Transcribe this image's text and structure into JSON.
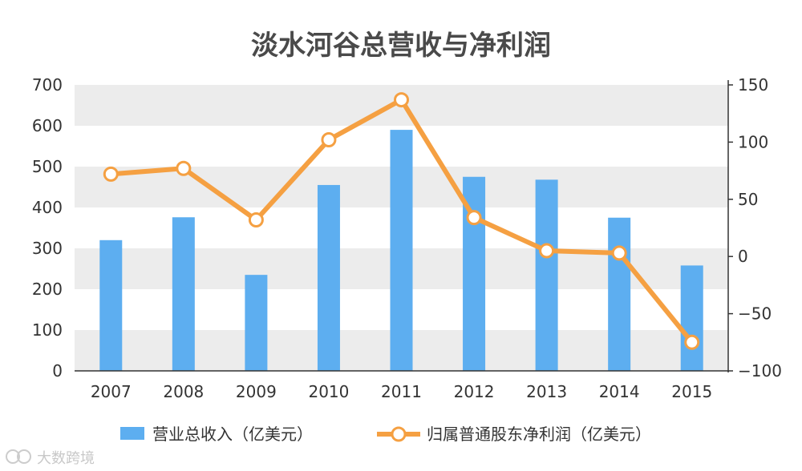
{
  "chart_data": {
    "type": "bar+line",
    "title": "淡水河谷总营收与净利润",
    "categories": [
      "2007",
      "2008",
      "2009",
      "2010",
      "2011",
      "2012",
      "2013",
      "2014",
      "2015"
    ],
    "series": [
      {
        "name": "营业总收入（亿美元）",
        "type": "bar",
        "axis": "left",
        "color": "#5daef0",
        "values": [
          320,
          376,
          235,
          455,
          590,
          475,
          468,
          375,
          258
        ]
      },
      {
        "name": "归属普通股东净利润（亿美元）",
        "type": "line",
        "axis": "right",
        "color": "#f5a042",
        "values": [
          72,
          77,
          32,
          102,
          137,
          34,
          5,
          3,
          -75
        ]
      }
    ],
    "y_left": {
      "min": 0,
      "max": 700,
      "ticks": [
        "0",
        "100",
        "200",
        "300",
        "400",
        "500",
        "600",
        "700"
      ]
    },
    "y_right": {
      "min": -100,
      "max": 150,
      "ticks": [
        "−100",
        "−50",
        "0",
        "50",
        "100",
        "150"
      ]
    },
    "grid": "alternating horizontal bands",
    "legend_position": "bottom"
  },
  "watermark": {
    "text": "大数跨境"
  }
}
